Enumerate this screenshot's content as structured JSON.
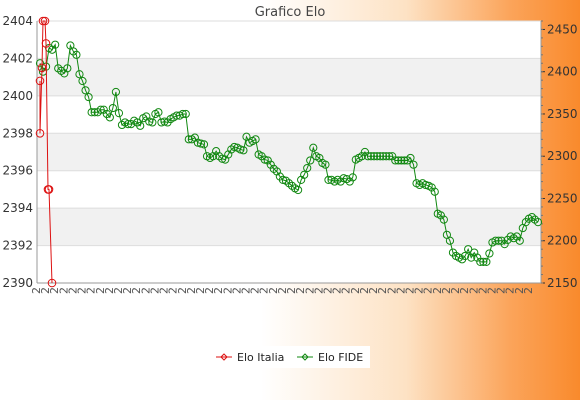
{
  "chart_data": {
    "type": "line",
    "title": "Grafico Elo",
    "y_left": {
      "ylim": [
        2390,
        2404
      ],
      "ticks": [
        2390,
        2392,
        2394,
        2396,
        2398,
        2400,
        2402,
        2404
      ]
    },
    "y_right": {
      "ylim": [
        2150,
        2460
      ],
      "ticks": [
        2150,
        2200,
        2250,
        2300,
        2350,
        2400,
        2450
      ]
    },
    "grid": true,
    "legend_position": "bottom",
    "series": [
      {
        "name": "Elo Italia",
        "color": "#dd1111",
        "axis": "left",
        "values": [
          2400.8,
          2398,
          2401.5,
          2404,
          2404,
          2402.8,
          2395,
          2395,
          2390
        ]
      },
      {
        "name": "Elo FIDE",
        "color": "#118811",
        "axis": "right",
        "values": [
          2410,
          2400,
          2406,
          2428,
          2426,
          2432,
          2404,
          2401,
          2398,
          2404,
          2431,
          2424,
          2420,
          2397,
          2389,
          2378,
          2370,
          2352,
          2352,
          2352,
          2355,
          2355,
          2350,
          2346,
          2357,
          2376,
          2351,
          2337,
          2340,
          2338,
          2338,
          2342,
          2340,
          2336,
          2345,
          2347,
          2341,
          2340,
          2350,
          2352,
          2340,
          2341,
          2340,
          2344,
          2346,
          2348,
          2348,
          2350,
          2350,
          2320,
          2320,
          2322,
          2316,
          2315,
          2314,
          2300,
          2298,
          2300,
          2306,
          2300,
          2297,
          2296,
          2302,
          2308,
          2311,
          2310,
          2308,
          2307,
          2323,
          2316,
          2318,
          2320,
          2302,
          2300,
          2296,
          2295,
          2290,
          2285,
          2282,
          2276,
          2272,
          2271,
          2268,
          2265,
          2262,
          2260,
          2272,
          2278,
          2286,
          2295,
          2310,
          2300,
          2298,
          2292,
          2290,
          2272,
          2272,
          2270,
          2272,
          2270,
          2274,
          2273,
          2270,
          2275,
          2296,
          2298,
          2300,
          2305,
          2300,
          2300,
          2300,
          2300,
          2300,
          2300,
          2300,
          2300,
          2300,
          2295,
          2295,
          2295,
          2295,
          2295,
          2298,
          2290,
          2268,
          2266,
          2268,
          2266,
          2265,
          2263,
          2258,
          2232,
          2230,
          2225,
          2207,
          2200,
          2186,
          2182,
          2180,
          2178,
          2182,
          2190,
          2180,
          2186,
          2180,
          2175,
          2175,
          2175,
          2185,
          2198,
          2200,
          2200,
          2200,
          2196,
          2201,
          2205,
          2203,
          2205,
          2200,
          2215,
          2222,
          2226,
          2228,
          2225,
          2222
        ]
      }
    ],
    "x_ticks_note": "dense overlapping date labels along the x-axis"
  },
  "legend": {
    "items": [
      {
        "label": "Elo Italia",
        "color": "#dd1111"
      },
      {
        "label": "Elo FIDE",
        "color": "#118811"
      }
    ]
  }
}
